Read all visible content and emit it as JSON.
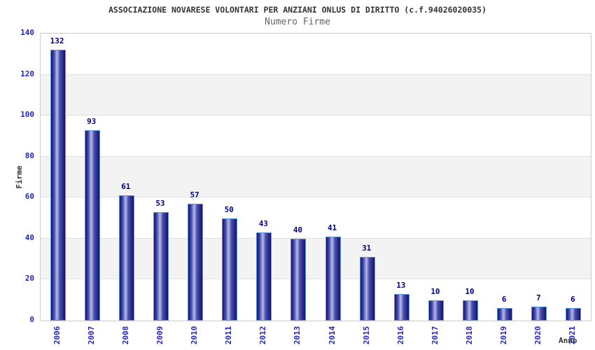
{
  "title": "ASSOCIAZIONE NOVARESE VOLONTARI PER ANZIANI ONLUS DI DIRITTO (c.f.94026020035)",
  "subtitle": "Numero Firme",
  "chart_data": {
    "type": "bar",
    "categories": [
      "2006",
      "2007",
      "2008",
      "2009",
      "2010",
      "2011",
      "2012",
      "2013",
      "2014",
      "2015",
      "2016",
      "2017",
      "2018",
      "2019",
      "2020",
      "2021"
    ],
    "values": [
      132,
      93,
      61,
      53,
      57,
      50,
      43,
      40,
      41,
      31,
      13,
      10,
      10,
      6,
      7,
      6
    ],
    "title": "ASSOCIAZIONE NOVARESE VOLONTARI PER ANZIANI ONLUS DI DIRITTO (c.f.94026020035)",
    "subtitle": "Numero Firme",
    "xlabel": "Anno",
    "ylabel": "Firme",
    "ylim": [
      0,
      140
    ],
    "ytick_step": 20,
    "yticks": [
      0,
      20,
      40,
      60,
      80,
      100,
      120,
      140
    ],
    "grid": "alternating horizontal bands with light gridlines",
    "legend": "none",
    "bar_value_labels_shown": true,
    "colors": {
      "title": "#333333",
      "subtitle": "#666666",
      "axis_label": "#333333",
      "tick_label": "#2424cc",
      "value_label": "#00008b",
      "band_gray": "#f3f3f3",
      "band_white": "#ffffff",
      "grid_line": "#e0e0e0",
      "plot_border": "#cccccc",
      "bar_dark": "#12126e",
      "bar_mid": "#4a4fae",
      "bar_light": "#b7bce8",
      "bar_border": "#5f96e0"
    }
  }
}
